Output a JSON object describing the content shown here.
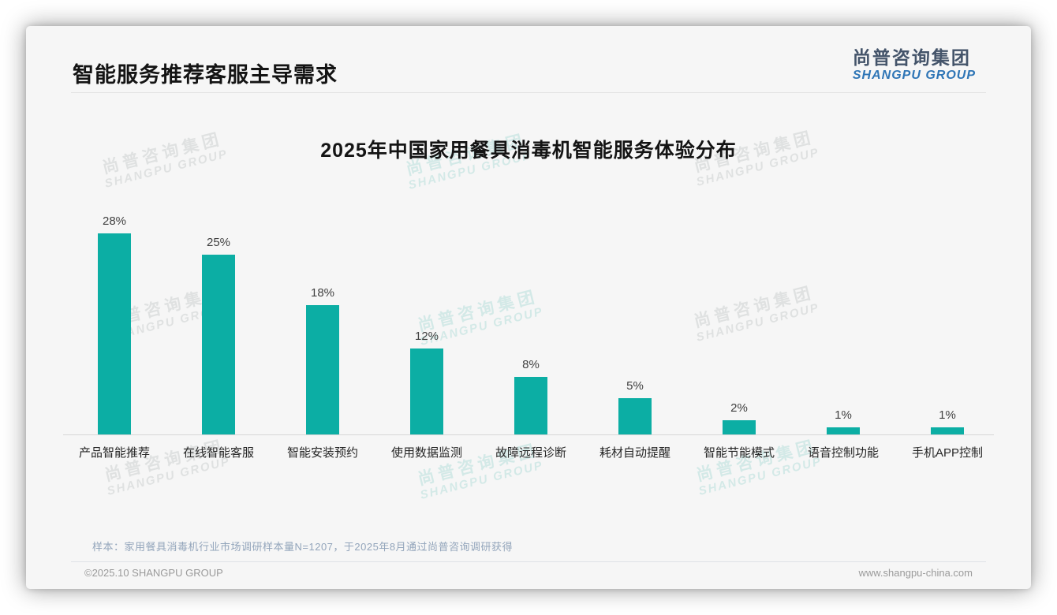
{
  "page": {
    "title": "智能服务推荐客服主导需求",
    "logo": {
      "cn": "尚普咨询集团",
      "en": "SHANGPU GROUP"
    },
    "footnote": "样本：家用餐具消毒机行业市场调研样本量N=1207，于2025年8月通过尚普咨询调研获得",
    "footer_left": "©2025.10 SHANGPU GROUP",
    "footer_right": "www.shangpu-china.com"
  },
  "watermark": {
    "line1": "尚普咨询集团",
    "line2": "SHANGPU GROUP"
  },
  "colors": {
    "bar_teal": "#0CAEA4",
    "logo_blue": "#2E75B6",
    "logo_dark": "#44546A",
    "footnote_gray_blue": "#93A5BB"
  },
  "chart_data": {
    "type": "bar",
    "title": "2025年中国家用餐具消毒机智能服务体验分布",
    "categories": [
      "产品智能推荐",
      "在线智能客服",
      "智能安装预约",
      "使用数据监测",
      "故障远程诊断",
      "耗材自动提醒",
      "智能节能模式",
      "语音控制功能",
      "手机APP控制"
    ],
    "values": [
      28,
      25,
      18,
      12,
      8,
      5,
      2,
      1,
      1
    ],
    "value_labels": [
      "28%",
      "25%",
      "18%",
      "12%",
      "8%",
      "5%",
      "2%",
      "1%",
      "1%"
    ],
    "xlabel": "",
    "ylabel": "",
    "ylim": [
      0,
      30
    ],
    "grid": false,
    "legend": null,
    "bar_color": "#0CAEA4",
    "data_labels_position": "above-bar",
    "axis_baseline": true
  }
}
